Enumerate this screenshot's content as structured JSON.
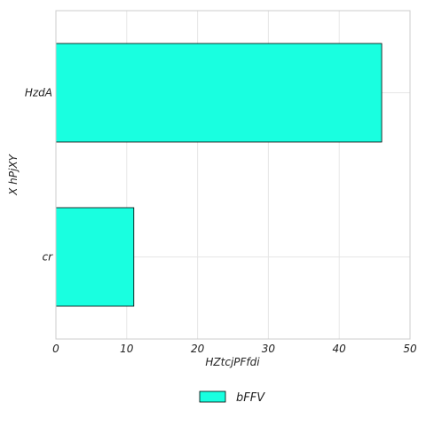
{
  "chart_data": {
    "type": "bar",
    "orientation": "horizontal",
    "categories": [
      "HzdA",
      "cr"
    ],
    "series": [
      {
        "name": "bFFV",
        "values": [
          46,
          11
        ],
        "color": "#19ffe0"
      }
    ],
    "xlabel": "HZtcjPFfdi",
    "ylabel": "X hPjXY",
    "xlim": [
      0,
      50
    ],
    "xticks": [
      0,
      10,
      20,
      30,
      40,
      50
    ],
    "grid": true,
    "legend_position": "bottom-center"
  }
}
